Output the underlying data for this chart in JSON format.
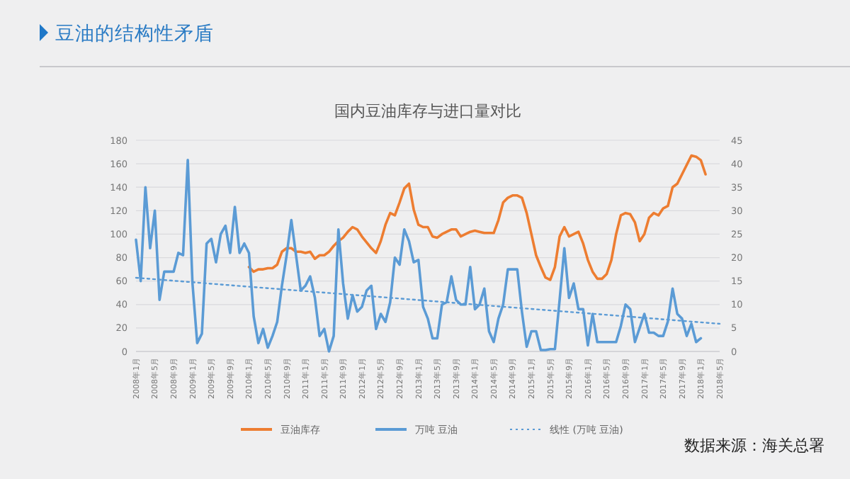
{
  "chart_data": {
    "type": "line",
    "title": "豆油的结构性矛盾",
    "subtitle": "国内豆油库存与进口量对比",
    "categories": [
      "2008年1月",
      null,
      null,
      null,
      "2008年5月",
      null,
      null,
      null,
      "2008年9月",
      null,
      null,
      null,
      "2009年1月",
      null,
      null,
      null,
      "2009年5月",
      null,
      null,
      null,
      "2009年9月",
      null,
      null,
      null,
      "2010年1月",
      null,
      null,
      null,
      "2010年5月",
      null,
      null,
      null,
      "2010年9月",
      null,
      null,
      null,
      "2011年1月",
      null,
      null,
      null,
      "2011年5月",
      null,
      null,
      null,
      "2011年9月",
      null,
      null,
      null,
      "2012年1月",
      null,
      null,
      null,
      "2012年5月",
      null,
      null,
      null,
      "2012年9月",
      null,
      null,
      null,
      "2013年1月",
      null,
      null,
      null,
      "2013年5月",
      null,
      null,
      null,
      "2013年9月",
      null,
      null,
      null,
      "2014年1月",
      null,
      null,
      null,
      "2014年5月",
      null,
      null,
      null,
      "2014年9月",
      null,
      null,
      null,
      "2015年1月",
      null,
      null,
      null,
      "2015年5月",
      null,
      null,
      null,
      "2015年9月",
      null,
      null,
      null,
      "2016年1月",
      null,
      null,
      null,
      "2016年5月",
      null,
      null,
      null,
      "2016年9月",
      null,
      null,
      null,
      "2017年1月",
      null,
      null,
      null,
      "2017年5月",
      null,
      null,
      null,
      "2017年9月",
      null,
      null,
      null,
      "2018年1月",
      null,
      null,
      null,
      "2018年5月"
    ],
    "series": [
      {
        "name": "豆油库存",
        "color": "#ed7d31",
        "values": [
          null,
          null,
          null,
          null,
          null,
          null,
          null,
          null,
          null,
          null,
          null,
          null,
          null,
          null,
          null,
          null,
          null,
          null,
          null,
          null,
          null,
          null,
          null,
          null,
          72,
          68,
          70,
          70,
          71,
          71,
          74,
          85,
          88,
          88,
          85,
          85,
          84,
          85,
          79,
          82,
          82,
          85,
          90,
          94,
          97,
          102,
          106,
          104,
          98,
          93,
          88,
          84,
          94,
          108,
          118,
          116,
          127,
          139,
          143,
          121,
          108,
          106,
          106,
          98,
          97,
          100,
          102,
          104,
          104,
          98,
          100,
          102,
          103,
          102,
          101,
          101,
          101,
          112,
          127,
          131,
          133,
          133,
          131,
          118,
          100,
          82,
          72,
          63,
          61,
          72,
          98,
          106,
          98,
          100,
          102,
          92,
          78,
          68,
          62,
          62,
          66,
          78,
          100,
          116,
          118,
          117,
          110,
          94,
          100,
          114,
          118,
          116,
          122,
          124,
          140,
          143,
          151,
          159,
          167,
          166,
          163,
          151,
          null,
          null,
          null
        ]
      },
      {
        "name": "万吨 豆油",
        "color": "#5b9bd5",
        "axis": "y2",
        "values": [
          23.8,
          15,
          35,
          22,
          30,
          11,
          17,
          17,
          17,
          21,
          20.5,
          40.8,
          14.5,
          1.8,
          3.8,
          23,
          24,
          19,
          25,
          26.8,
          21,
          30.8,
          21,
          23,
          21,
          7.5,
          1.8,
          4.8,
          0.8,
          3.3,
          6.3,
          14,
          20.5,
          28,
          20.5,
          13,
          14,
          16,
          11.5,
          3.3,
          4.8,
          0,
          3.3,
          26,
          14.5,
          7,
          12,
          8.5,
          9.5,
          13,
          14,
          4.8,
          8,
          6.3,
          10.5,
          20,
          18.5,
          26,
          23.5,
          19,
          19.5,
          9.5,
          7,
          2.8,
          2.8,
          10,
          10.5,
          16,
          11,
          10,
          10,
          18,
          9,
          10,
          13.4,
          4.3,
          2,
          7,
          10,
          17.5,
          17.5,
          17.5,
          8.4,
          1,
          4.3,
          4.3,
          0.3,
          0.3,
          0.5,
          0.5,
          11,
          22,
          11.4,
          14.5,
          9,
          9,
          1.3,
          8,
          2,
          2,
          2,
          2,
          2,
          5.4,
          10,
          9,
          2,
          5,
          8,
          4,
          4,
          3.3,
          3.3,
          6.4,
          13.4,
          8,
          7,
          3.3,
          5.9,
          2,
          2.8,
          null,
          null,
          null,
          null
        ]
      },
      {
        "name": "线性 (万吨 豆油)",
        "color": "#5b9bd5",
        "axis": "y2",
        "line_style": "dotted",
        "x": [
          "2008年1月",
          "2018年5月"
        ],
        "values": [
          15.7,
          5.9
        ]
      }
    ],
    "ylim": [
      0,
      180
    ],
    "yticks": [
      0,
      20,
      40,
      60,
      80,
      100,
      120,
      140,
      160,
      180
    ],
    "y2lim": [
      0,
      45
    ],
    "y2ticks": [
      0,
      5,
      10,
      15,
      20,
      25,
      30,
      35,
      40,
      45
    ],
    "grid": "y",
    "legend": "bottom",
    "line_style": "solid",
    "marker": "none",
    "annotations": [
      "数据来源：海关总署"
    ]
  }
}
